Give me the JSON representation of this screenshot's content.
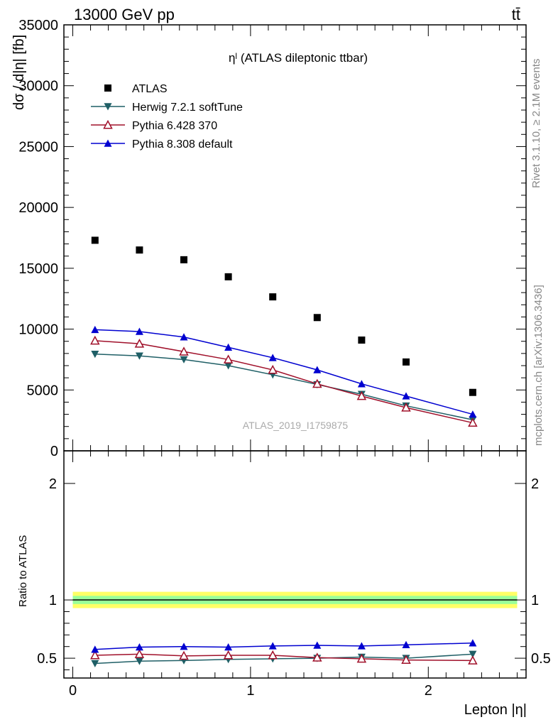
{
  "header": {
    "left": "13000 GeV pp",
    "right": "tt̄"
  },
  "side_texts": {
    "rivet": "Rivet 3.1.10, ≥ 2.1M events",
    "mcplots": "mcplots.cern.ch [arXiv:1306.3436]"
  },
  "watermark": "ATLAS_2019_I1759875",
  "chart_data": [
    {
      "type": "scatter",
      "title": "ηˡ (ATLAS dileptonic ttbar)",
      "ylabel": "dσ / d|η| [fb]",
      "xlabel": "",
      "xlim": [
        -0.05,
        2.55
      ],
      "ylim": [
        0,
        35000
      ],
      "yticks": [
        0,
        5000,
        10000,
        15000,
        20000,
        25000,
        30000,
        35000
      ],
      "ytick_labels": [
        "0",
        "5000",
        "10000",
        "15000",
        "20000",
        "25000",
        "30000",
        "35000"
      ],
      "x": [
        0.125,
        0.375,
        0.625,
        0.875,
        1.125,
        1.375,
        1.625,
        1.875,
        2.25
      ],
      "legend_position": "top-left",
      "series": [
        {
          "name": "ATLAS",
          "marker": "square",
          "color": "#000000",
          "line": false,
          "values": [
            17300,
            16500,
            15700,
            14300,
            12650,
            10950,
            9100,
            7300,
            4800
          ]
        },
        {
          "name": "Herwig 7.2.1 softTune",
          "marker": "triangle-down",
          "color": "#1f5f66",
          "line": true,
          "values": [
            7950,
            7800,
            7500,
            7000,
            6250,
            5450,
            4650,
            3700,
            2550
          ]
        },
        {
          "name": "Pythia 6.428 370",
          "marker": "triangle-up-open",
          "color": "#a0102a",
          "line": true,
          "values": [
            9050,
            8800,
            8150,
            7500,
            6650,
            5500,
            4500,
            3550,
            2300
          ]
        },
        {
          "name": "Pythia 8.308 default",
          "marker": "triangle-up",
          "color": "#0000d0",
          "line": true,
          "values": [
            9950,
            9800,
            9350,
            8500,
            7650,
            6650,
            5500,
            4500,
            3000
          ]
        }
      ]
    },
    {
      "type": "line",
      "ylabel": "Ratio to ATLAS",
      "xlabel": "Lepton |η|",
      "xlim": [
        -0.05,
        2.55
      ],
      "ylim": [
        0.33,
        2.28
      ],
      "xticks": [
        0,
        1,
        2
      ],
      "xtick_labels": [
        "0",
        "1",
        "2"
      ],
      "yticks": [
        0.5,
        1,
        2
      ],
      "ytick_labels": [
        "0.5",
        "1",
        "2"
      ],
      "x": [
        0.125,
        0.375,
        0.625,
        0.875,
        1.125,
        1.375,
        1.625,
        1.875,
        2.25
      ],
      "reference_band": {
        "outer": [
          0.93,
          1.07
        ],
        "inner": [
          0.965,
          1.035
        ],
        "outer_color": "#ffff66",
        "inner_color": "#99ff99"
      },
      "series": [
        {
          "name": "Herwig 7.2.1 softTune",
          "marker": "triangle-down",
          "color": "#1f5f66",
          "values": [
            0.455,
            0.475,
            0.48,
            0.49,
            0.495,
            0.5,
            0.51,
            0.5,
            0.535
          ]
        },
        {
          "name": "Pythia 6.428 370",
          "marker": "triangle-up-open",
          "color": "#a0102a",
          "values": [
            0.525,
            0.535,
            0.52,
            0.525,
            0.525,
            0.505,
            0.495,
            0.485,
            0.48
          ]
        },
        {
          "name": "Pythia 8.308 default",
          "marker": "triangle-up",
          "color": "#0000d0",
          "values": [
            0.575,
            0.595,
            0.6,
            0.595,
            0.605,
            0.61,
            0.605,
            0.615,
            0.63
          ]
        }
      ]
    }
  ]
}
